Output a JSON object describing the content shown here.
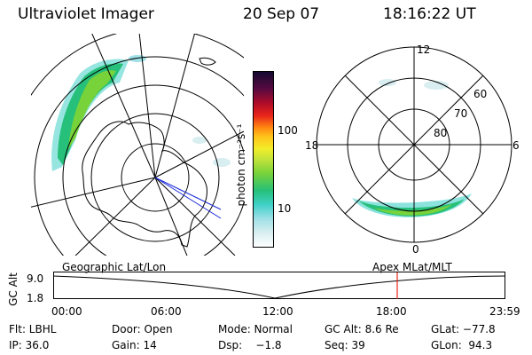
{
  "header": {
    "instrument": "Ultraviolet Imager",
    "date": "20 Sep 07",
    "time": "18:16:22 UT"
  },
  "colorbar": {
    "unit_label": "photon cm⁻²s⁻¹",
    "ticks": [
      "100",
      "10"
    ],
    "colors": [
      "#ffffff",
      "#d8eef0",
      "#9fe0e6",
      "#3fd0c8",
      "#26c07a",
      "#78d23a",
      "#c2e23a",
      "#f2ee2a",
      "#ffc21a",
      "#ff8a10",
      "#e8241a",
      "#b00c28",
      "#5a0a40",
      "#140a30"
    ]
  },
  "polar_plot": {
    "mlt_labels": {
      "top": "12",
      "left": "18",
      "right": "6",
      "bottom": "0"
    },
    "lat_labels": [
      "60",
      "70",
      "80"
    ]
  },
  "timeline": {
    "left_label": "Geographic Lat/Lon",
    "right_label": "Apex  MLat/MLT",
    "axis_title": "GC Alt",
    "y_ticks": [
      "9.0",
      "1.8"
    ],
    "x_ticks": [
      "00:00",
      "06:00",
      "12:00",
      "18:00",
      "23:59"
    ],
    "marker_time": "18:16"
  },
  "info": {
    "row1": {
      "filter": "Flt: LBHL",
      "door": "Door: Open",
      "mode": "Mode: Normal",
      "gc_alt": "GC Alt: 8.6 Re",
      "glat": "GLat: −77.8"
    },
    "row2": {
      "ip": "IP: 36.0",
      "gain": "Gain: 14",
      "dsp": "Dsp:    −1.8",
      "seq": "Seq: 39",
      "glon": "GLon:  94.3"
    }
  }
}
